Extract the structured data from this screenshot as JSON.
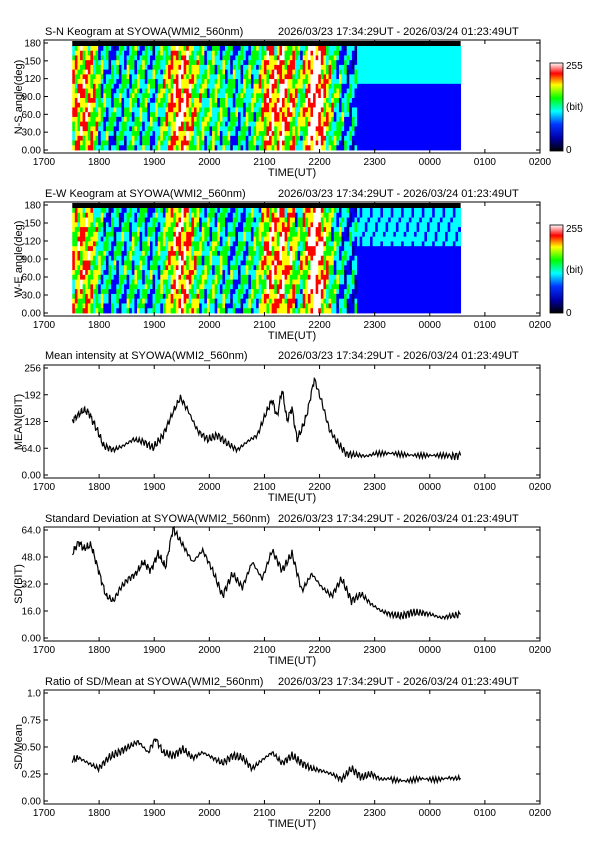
{
  "chart_data": [
    {
      "type": "heatmap",
      "title": "S-N Keogram at SYOWA(WMI2_560nm)",
      "time_range": "2026/03/23 17:34:29UT - 2026/03/24 01:23:49UT",
      "xlabel": "TIME(UT)",
      "ylabel": "N-S angle(deg)",
      "x_ticks": [
        "1700",
        "1800",
        "1900",
        "2000",
        "2100",
        "2200",
        "2300",
        "0000",
        "0100",
        "0200"
      ],
      "y_ticks": [
        "0.00",
        "30.0",
        "60.0",
        "90.0",
        "120",
        "150",
        "180"
      ],
      "ylim": [
        0,
        180
      ],
      "colorbar": {
        "min_label": "0",
        "max_label": "255",
        "unit": "(bit)"
      },
      "colors": [
        "#00008b",
        "#0000ff",
        "#00ffff",
        "#00ff00",
        "#ffff00",
        "#ff0000",
        "#ffffff"
      ]
    },
    {
      "type": "heatmap",
      "title": "E-W Keogram at SYOWA(WMI2_560nm)",
      "time_range": "2026/03/23 17:34:29UT - 2026/03/24 01:23:49UT",
      "xlabel": "TIME(UT)",
      "ylabel": "W-E angle(deg)",
      "x_ticks": [
        "1700",
        "1800",
        "1900",
        "2000",
        "2100",
        "2200",
        "2300",
        "0000",
        "0100",
        "0200"
      ],
      "y_ticks": [
        "0.00",
        "30.0",
        "60.0",
        "90.0",
        "120",
        "150",
        "180"
      ],
      "ylim": [
        0,
        180
      ],
      "colorbar": {
        "min_label": "0",
        "max_label": "255",
        "unit": "(bit)"
      }
    },
    {
      "type": "line",
      "title": "Mean intensity at SYOWA(WMI2_560nm)",
      "time_range": "2026/03/23 17:34:29UT - 2026/03/24 01:23:49UT",
      "xlabel": "TIME(UT)",
      "ylabel": "MEAN(BIT)",
      "x_ticks": [
        "1700",
        "1800",
        "1900",
        "2000",
        "2100",
        "2200",
        "2300",
        "0000",
        "0100",
        "0200"
      ],
      "y_ticks": [
        "0.00",
        "64.0",
        "128",
        "192",
        "256"
      ],
      "ylim": [
        0,
        256
      ],
      "x_hours": [
        17.57,
        17.7,
        17.8,
        17.9,
        18.0,
        18.1,
        18.2,
        18.4,
        18.6,
        18.8,
        19.0,
        19.2,
        19.4,
        19.6,
        19.75,
        19.9,
        20.1,
        20.3,
        20.5,
        20.7,
        20.9,
        21.1,
        21.3,
        21.5,
        21.6,
        21.7,
        21.8,
        21.9,
        22.0,
        22.1,
        22.2,
        22.3,
        22.45,
        22.6,
        22.75,
        22.9,
        23.1,
        23.3,
        23.5,
        23.7,
        24.0,
        24.3,
        24.6,
        24.9,
        25.2,
        25.4
      ],
      "values": [
        130,
        145,
        155,
        150,
        125,
        100,
        70,
        60,
        70,
        85,
        80,
        65,
        95,
        150,
        185,
        155,
        105,
        85,
        95,
        75,
        60,
        80,
        95,
        155,
        180,
        140,
        205,
        130,
        160,
        85,
        110,
        145,
        230,
        175,
        110,
        80,
        50,
        48,
        45,
        52,
        55,
        52,
        50,
        48,
        45,
        47
      ]
    },
    {
      "type": "line",
      "title": "Standard Deviation at SYOWA(WMI2_560nm)",
      "time_range": "2026/03/23 17:34:29UT - 2026/03/24 01:23:49UT",
      "xlabel": "TIME(UT)",
      "ylabel": "SD(BIT)",
      "x_ticks": [
        "1700",
        "1800",
        "1900",
        "2000",
        "2100",
        "2200",
        "2300",
        "0000",
        "0100",
        "0200"
      ],
      "y_ticks": [
        "0.00",
        "16.0",
        "32.0",
        "48.0",
        "64.0"
      ],
      "ylim": [
        0,
        64
      ],
      "x_hours": [
        17.57,
        17.7,
        17.8,
        17.95,
        18.1,
        18.25,
        18.4,
        18.55,
        18.7,
        18.85,
        19.0,
        19.15,
        19.3,
        19.45,
        19.6,
        19.8,
        20.0,
        20.2,
        20.4,
        20.6,
        20.8,
        21.0,
        21.2,
        21.4,
        21.6,
        21.8,
        22.0,
        22.2,
        22.4,
        22.6,
        22.8,
        23.0,
        23.2,
        23.4,
        23.6,
        23.8,
        24.0,
        24.2,
        24.4,
        24.6,
        24.8,
        25.0,
        25.2,
        25.4
      ],
      "values": [
        50,
        57,
        53,
        55,
        40,
        25,
        22,
        30,
        35,
        38,
        45,
        40,
        50,
        42,
        65,
        55,
        45,
        52,
        40,
        25,
        38,
        30,
        45,
        35,
        52,
        40,
        50,
        28,
        38,
        30,
        25,
        35,
        22,
        26,
        20,
        16,
        14,
        13,
        15,
        15,
        14,
        12,
        13,
        14
      ]
    },
    {
      "type": "line",
      "title": "Ratio of SD/Mean at SYOWA(WMI2_560nm)",
      "time_range": "2026/03/23 17:34:29UT - 2026/03/24 01:23:49UT",
      "xlabel": "TIME(UT)",
      "ylabel": "SD/Mean",
      "x_ticks": [
        "1700",
        "1800",
        "1900",
        "2000",
        "2100",
        "2200",
        "2300",
        "0000",
        "0100",
        "0200"
      ],
      "y_ticks": [
        "0.00",
        "0.25",
        "0.50",
        "0.75",
        "1.0"
      ],
      "ylim": [
        0,
        1.0
      ],
      "x_hours": [
        17.57,
        17.7,
        17.9,
        18.1,
        18.3,
        18.5,
        18.7,
        18.9,
        19.1,
        19.25,
        19.4,
        19.6,
        19.8,
        20.0,
        20.2,
        20.4,
        20.6,
        20.8,
        21.0,
        21.2,
        21.4,
        21.6,
        21.8,
        22.0,
        22.2,
        22.4,
        22.6,
        22.8,
        23.0,
        23.2,
        23.4,
        23.6,
        23.8,
        24.0,
        24.3,
        24.6,
        24.9,
        25.2,
        25.4
      ],
      "values": [
        0.38,
        0.4,
        0.35,
        0.3,
        0.4,
        0.45,
        0.5,
        0.55,
        0.45,
        0.58,
        0.45,
        0.42,
        0.48,
        0.4,
        0.45,
        0.4,
        0.35,
        0.42,
        0.4,
        0.3,
        0.38,
        0.45,
        0.35,
        0.42,
        0.35,
        0.3,
        0.28,
        0.25,
        0.2,
        0.3,
        0.22,
        0.25,
        0.2,
        0.21,
        0.2,
        0.22,
        0.2,
        0.21,
        0.21
      ]
    }
  ]
}
